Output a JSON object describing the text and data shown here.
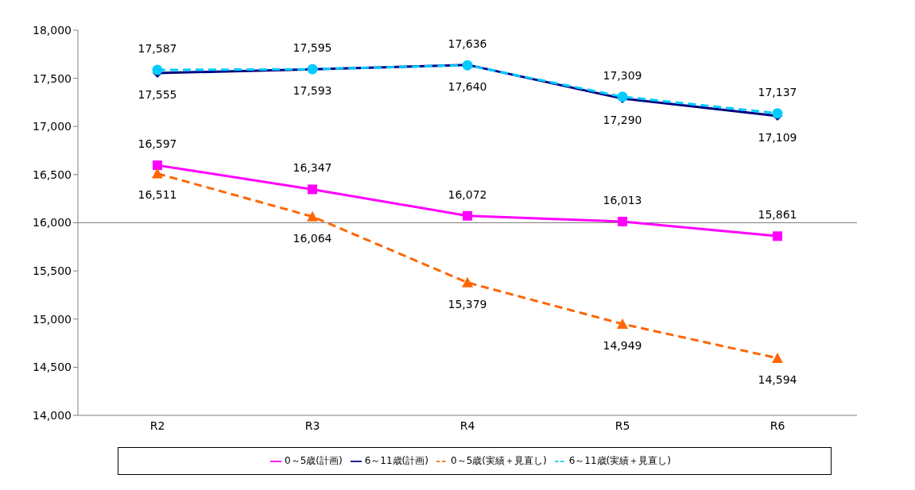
{
  "chart_data": {
    "type": "line",
    "categories": [
      "R2",
      "R3",
      "R4",
      "R5",
      "R6"
    ],
    "series": [
      {
        "name": "0～5歳(計画)",
        "color": "#ff00ff",
        "marker": "square",
        "line_style": "solid",
        "values": [
          16597,
          16347,
          16072,
          16013,
          15861
        ],
        "value_labels": [
          "16,597",
          "16,347",
          "16,072",
          "16,013",
          "15,861"
        ]
      },
      {
        "name": "6～11歳(計画)",
        "color": "#000080",
        "marker": "diamond",
        "line_style": "solid",
        "values": [
          17555,
          17593,
          17640,
          17290,
          17109
        ],
        "value_labels": [
          "17,555",
          "17,593",
          "17,640",
          "17,290",
          "17,109"
        ]
      },
      {
        "name": "0～5歳(実績＋見直し)",
        "color": "#ff6600",
        "marker": "triangle",
        "line_style": "dashed",
        "values": [
          16511,
          16064,
          15379,
          14949,
          14594
        ],
        "value_labels": [
          "16,511",
          "16,064",
          "15,379",
          "14,949",
          "14,594"
        ]
      },
      {
        "name": "6～11歳(実績＋見直し)",
        "color": "#00ccff",
        "marker": "circle",
        "line_style": "dashed",
        "values": [
          17587,
          17595,
          17636,
          17309,
          17137
        ],
        "value_labels": [
          "17,587",
          "17,595",
          "17,636",
          "17,309",
          "17,137"
        ]
      }
    ],
    "ylim": [
      14000,
      18000
    ],
    "yticks": [
      {
        "value": 14000,
        "label": "14,000"
      },
      {
        "value": 14500,
        "label": "14,500"
      },
      {
        "value": 15000,
        "label": "15,000"
      },
      {
        "value": 15500,
        "label": "15,500"
      },
      {
        "value": 16000,
        "label": "16,000"
      },
      {
        "value": 16500,
        "label": "16,500"
      },
      {
        "value": 17000,
        "label": "17,000"
      },
      {
        "value": 17500,
        "label": "17,500"
      },
      {
        "value": 18000,
        "label": "18,000"
      }
    ],
    "ref_lines": [
      {
        "axis": "y",
        "value": 16000,
        "color": "#808080"
      }
    ],
    "legend": "bottom"
  }
}
